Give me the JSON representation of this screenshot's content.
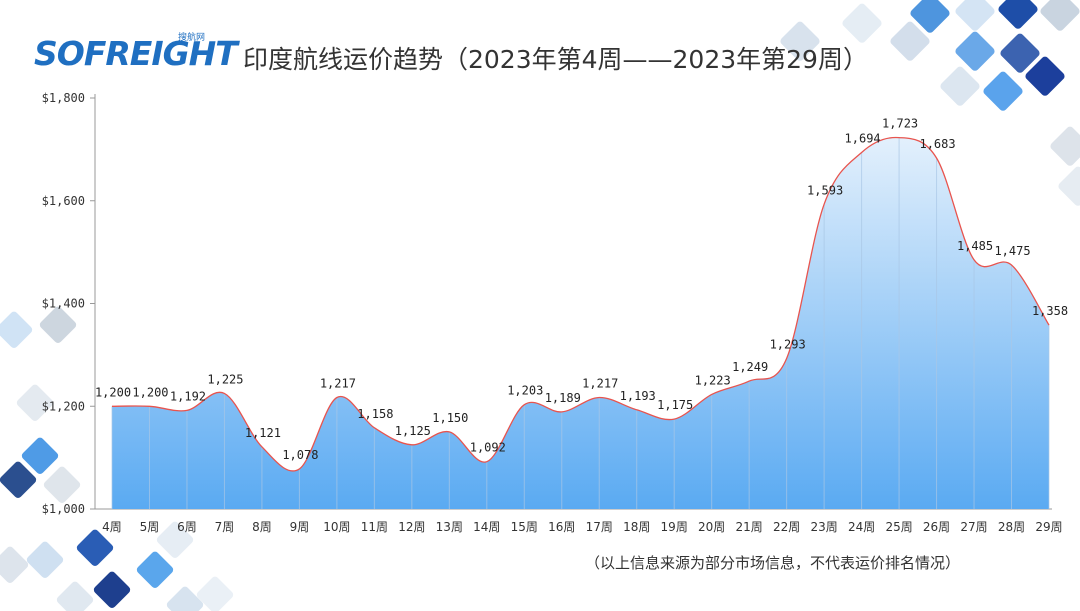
{
  "brand": {
    "logo_text": "SOFREIGHT",
    "logo_sub": "搜航网"
  },
  "chart_data": {
    "type": "area",
    "title": "印度航线运价趋势（2023年第4周——2023年第29周）",
    "xlabel": "",
    "ylabel": "",
    "ylim": [
      1000,
      1800
    ],
    "yticks": [
      1000,
      1200,
      1400,
      1600,
      1800
    ],
    "ytick_labels": [
      "$1,000",
      "$1,200",
      "$1,400",
      "$1,600",
      "$1,800"
    ],
    "categories": [
      "4周",
      "5周",
      "6周",
      "7周",
      "8周",
      "9周",
      "10周",
      "11周",
      "12周",
      "13周",
      "14周",
      "15周",
      "16周",
      "17周",
      "18周",
      "19周",
      "20周",
      "21周",
      "22周",
      "23周",
      "24周",
      "25周",
      "26周",
      "27周",
      "28周",
      "29周"
    ],
    "values": [
      1200,
      1200,
      1192,
      1225,
      1121,
      1078,
      1217,
      1158,
      1125,
      1150,
      1092,
      1203,
      1189,
      1217,
      1193,
      1175,
      1223,
      1249,
      1293,
      1593,
      1694,
      1723,
      1683,
      1485,
      1475,
      1358
    ],
    "data_labels": [
      "1,200",
      "1,200",
      "1,192",
      "1,225",
      "1,121",
      "1,078",
      "1,217",
      "1,158",
      "1,125",
      "1,150",
      "1,092",
      "1,203",
      "1,189",
      "1,217",
      "1,193",
      "1,175",
      "1,223",
      "1,249",
      "1,293",
      "1,593",
      "1,694",
      "1,723",
      "1,683",
      "1,485",
      "1,475",
      "1,358"
    ],
    "grid": false,
    "legend": "none",
    "colors": {
      "line": "#e8544e",
      "fill_top": "#e3f0fc",
      "fill_bottom": "#5aaaf2",
      "axis": "#999999"
    }
  },
  "footnote": "（以上信息来源为部分市场信息，不代表运价排名情况）"
}
